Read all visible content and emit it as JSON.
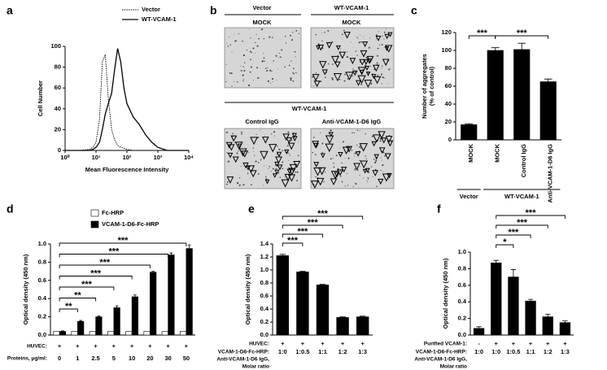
{
  "chart_data": [
    {
      "type": "line",
      "label": "a",
      "xlabel": "Mean Fluorescence Intensity",
      "ylabel": "Cell Number",
      "xscale": "log",
      "xlim": [
        1,
        10000
      ],
      "xticks": [
        {
          "value": 1,
          "label": "10⁰"
        },
        {
          "value": 10,
          "label": "10¹"
        },
        {
          "value": 100,
          "label": "10²"
        },
        {
          "value": 1000,
          "label": "10³"
        },
        {
          "value": 10000,
          "label": "10⁴"
        }
      ],
      "ylim": [
        0,
        100
      ],
      "yticks": [
        0,
        20,
        40,
        60,
        80,
        100
      ],
      "x": [
        1,
        3,
        6,
        8,
        10,
        13,
        16,
        20,
        25,
        32,
        40,
        50,
        63,
        80,
        100,
        160,
        250,
        400,
        630,
        1000,
        2000,
        10000
      ],
      "series": [
        {
          "name": "Vector",
          "color": "#000000",
          "style": "dotted",
          "values": [
            0,
            0,
            1,
            3,
            8,
            30,
            85,
            92,
            50,
            20,
            10,
            5,
            3,
            2,
            1,
            0,
            0,
            0,
            0,
            0,
            0,
            0
          ]
        },
        {
          "name": "WT-VCAM-1",
          "color": "#000000",
          "style": "solid",
          "values": [
            0,
            0,
            0,
            1,
            3,
            8,
            20,
            35,
            45,
            55,
            78,
            98,
            85,
            60,
            45,
            32,
            25,
            15,
            8,
            3,
            0,
            0
          ]
        }
      ],
      "legend": "upper right"
    },
    {
      "type": "bar",
      "label": "c",
      "ylabel": [
        "Number of aggregates",
        "(% of control)"
      ],
      "categories": [
        "MOCK",
        "MOCK",
        "Control IgG",
        "Anti-VCAM-1-D6 IgG"
      ],
      "values": [
        17,
        100,
        101,
        65
      ],
      "errors": [
        1,
        3,
        7,
        3
      ],
      "color": "#000000",
      "ylim": [
        0,
        120
      ],
      "yticks": [
        0,
        20,
        40,
        60,
        80,
        100,
        120
      ],
      "rotate_labels": true,
      "groups": [
        {
          "label": "Vector",
          "from": 0,
          "to": 0
        },
        {
          "label": "WT-VCAM-1",
          "from": 1,
          "to": 3
        }
      ],
      "brackets": [
        {
          "from": 0,
          "to": 1,
          "label": "***"
        },
        {
          "from": 1,
          "to": 3,
          "label": "***"
        }
      ]
    },
    {
      "type": "bar",
      "label": "d",
      "ylabel": "Optical density (450 nm)",
      "categories": [
        "0",
        "1",
        "2.5",
        "5",
        "10",
        "20",
        "30",
        "50"
      ],
      "series": [
        {
          "name": "Fc-HRP",
          "color": "#ffffff",
          "values": [
            0.04,
            0.04,
            0.04,
            0.04,
            0.04,
            0.04,
            0.04,
            0.04
          ]
        },
        {
          "name": "VCAM-1-D6-Fc-HRP",
          "color": "#000000",
          "values": [
            0.04,
            0.15,
            0.2,
            0.3,
            0.42,
            0.69,
            0.88,
            0.95
          ],
          "errors": [
            0.005,
            0.01,
            0.01,
            0.02,
            0.02,
            0.01,
            0.02,
            0.04
          ]
        }
      ],
      "ylim": [
        0,
        1
      ],
      "yticks": [
        {
          "value": 0,
          "label": "0.0"
        },
        0.2,
        0.4,
        0.6,
        0.8,
        {
          "value": 1,
          "label": "1.0"
        }
      ],
      "legend": "upper left",
      "rows": [
        {
          "label": "HUVEC:",
          "values": [
            "+",
            "+",
            "+",
            "+",
            "+",
            "+",
            "+",
            "+"
          ]
        }
      ],
      "category_label": [
        "Proteins, μg/ml:"
      ],
      "brackets": [
        {
          "from": 0,
          "to": 1,
          "label": "**"
        },
        {
          "from": 0,
          "to": 2,
          "label": "**"
        },
        {
          "from": 0,
          "to": 3,
          "label": "***"
        },
        {
          "from": 0,
          "to": 4,
          "label": "***"
        },
        {
          "from": 0,
          "to": 5,
          "label": "***"
        },
        {
          "from": 0,
          "to": 6,
          "label": "***"
        },
        {
          "from": 0,
          "to": 7,
          "label": "***"
        }
      ]
    },
    {
      "type": "bar",
      "label": "e",
      "ylabel": "Optical density (450 nm)",
      "categories": [
        "1:0",
        "1:0.5",
        "1:1",
        "1:2",
        "1:3"
      ],
      "values": [
        1.22,
        0.97,
        0.77,
        0.27,
        0.28
      ],
      "errors": [
        0.02,
        0.01,
        0.01,
        0.01,
        0.01
      ],
      "color": "#000000",
      "ylim": [
        0,
        1.4
      ],
      "yticks": [
        {
          "value": 0,
          "label": "0.0"
        },
        0.2,
        0.4,
        0.6,
        0.8,
        {
          "value": 1,
          "label": "1.0"
        },
        1.2,
        1.4
      ],
      "rows": [
        {
          "label": "HUVEC:",
          "values": [
            "+",
            "+",
            "+",
            "+",
            "+"
          ]
        }
      ],
      "category_label": [
        "VCAM-1-D6-Fc-HRP:",
        "Anti-VCAM-1-D6  IgG,",
        "Molar ratio"
      ],
      "brackets": [
        {
          "from": 0,
          "to": 1,
          "label": "***"
        },
        {
          "from": 0,
          "to": 2,
          "label": "***"
        },
        {
          "from": 0,
          "to": 3,
          "label": "***"
        },
        {
          "from": 0,
          "to": 4,
          "label": "***"
        }
      ]
    },
    {
      "type": "bar",
      "label": "f",
      "ylabel": "Optical density (450 nm)",
      "categories": [
        "1:0",
        "1:0",
        "1:0.5",
        "1:1",
        "1:2",
        "1:3"
      ],
      "values": [
        0.08,
        0.87,
        0.7,
        0.41,
        0.22,
        0.15
      ],
      "errors": [
        0.02,
        0.03,
        0.09,
        0.02,
        0.03,
        0.02
      ],
      "color": "#000000",
      "ylim": [
        0,
        1
      ],
      "yticks": [
        {
          "value": 0,
          "label": "0.0"
        },
        0.2,
        0.4,
        0.6,
        0.8,
        {
          "value": 1,
          "label": "1.0"
        }
      ],
      "rows": [
        {
          "label": "Purified VCAM-1:",
          "values": [
            "-",
            "+",
            "+",
            "+",
            "+",
            "+"
          ]
        }
      ],
      "category_label": [
        "VCAM-1-D6-Fc-HRP:",
        "Anti-VCAM-1-D6  IgG,",
        "Molar ratio"
      ],
      "brackets": [
        {
          "from": 1,
          "to": 2,
          "label": "*"
        },
        {
          "from": 1,
          "to": 3,
          "label": "***"
        },
        {
          "from": 1,
          "to": 4,
          "label": "***"
        },
        {
          "from": 1,
          "to": 5,
          "label": "***"
        }
      ]
    }
  ],
  "panel_b": {
    "label": "b",
    "columns": [
      "Vector",
      "WT-VCAM-1"
    ],
    "top": [
      "MOCK",
      "MOCK"
    ],
    "group": "WT-VCAM-1",
    "bottom": [
      "Control IgG",
      "Anti-VCAM-1-D6 IgG"
    ]
  }
}
